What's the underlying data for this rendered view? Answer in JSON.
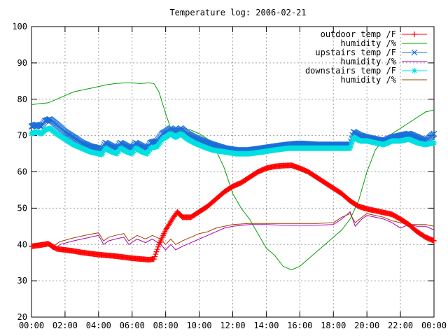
{
  "chart_data": {
    "type": "line",
    "title": "Temperature log: 2006-02-21",
    "xlabel": "",
    "ylabel": "",
    "xlim": [
      0,
      24
    ],
    "ylim": [
      20,
      100
    ],
    "x_unit": "hours",
    "grid": true,
    "legend_position": "top-right",
    "x_ticks": [
      {
        "value": 0,
        "label": "00:00"
      },
      {
        "value": 2,
        "label": "02:00"
      },
      {
        "value": 4,
        "label": "04:00"
      },
      {
        "value": 6,
        "label": "06:00"
      },
      {
        "value": 8,
        "label": "08:00"
      },
      {
        "value": 10,
        "label": "10:00"
      },
      {
        "value": 12,
        "label": "12:00"
      },
      {
        "value": 14,
        "label": "14:00"
      },
      {
        "value": 16,
        "label": "16:00"
      },
      {
        "value": 18,
        "label": "18:00"
      },
      {
        "value": 20,
        "label": "20:00"
      },
      {
        "value": 22,
        "label": "22:00"
      },
      {
        "value": 24,
        "label": "00:00"
      }
    ],
    "y_ticks": [
      {
        "value": 20,
        "label": "20"
      },
      {
        "value": 30,
        "label": "30"
      },
      {
        "value": 40,
        "label": "40"
      },
      {
        "value": 50,
        "label": "50"
      },
      {
        "value": 60,
        "label": "60"
      },
      {
        "value": 70,
        "label": "70"
      },
      {
        "value": 80,
        "label": "80"
      },
      {
        "value": 90,
        "label": "90"
      },
      {
        "value": 100,
        "label": "100"
      }
    ],
    "series": [
      {
        "name": "outdoor temp /F",
        "color": "#ff0000",
        "marker": "plus",
        "points": [
          [
            0,
            39.5
          ],
          [
            0.5,
            39.8
          ],
          [
            1,
            40.2
          ],
          [
            1.5,
            38.8
          ],
          [
            2,
            38.5
          ],
          [
            2.5,
            38.2
          ],
          [
            3,
            37.8
          ],
          [
            3.5,
            37.5
          ],
          [
            4,
            37.2
          ],
          [
            4.5,
            37
          ],
          [
            5,
            36.8
          ],
          [
            5.5,
            36.5
          ],
          [
            6,
            36.2
          ],
          [
            6.5,
            36
          ],
          [
            7,
            35.8
          ],
          [
            7.3,
            36
          ],
          [
            7.6,
            40
          ],
          [
            8,
            44
          ],
          [
            8.4,
            47
          ],
          [
            8.7,
            49
          ],
          [
            9,
            47.5
          ],
          [
            9.5,
            47.5
          ],
          [
            10,
            49
          ],
          [
            10.5,
            50.5
          ],
          [
            11,
            52.5
          ],
          [
            11.5,
            54.5
          ],
          [
            12,
            56
          ],
          [
            12.5,
            57
          ],
          [
            13,
            58.5
          ],
          [
            13.5,
            60
          ],
          [
            14,
            61
          ],
          [
            14.5,
            61.5
          ],
          [
            15,
            61.7
          ],
          [
            15.5,
            61.8
          ],
          [
            16,
            61
          ],
          [
            16.5,
            60
          ],
          [
            17,
            58.5
          ],
          [
            17.5,
            57
          ],
          [
            18,
            55.5
          ],
          [
            18.5,
            54
          ],
          [
            19,
            52
          ],
          [
            19.5,
            50.5
          ],
          [
            20,
            49.8
          ],
          [
            20.5,
            49.3
          ],
          [
            21,
            48.8
          ],
          [
            21.5,
            48.3
          ],
          [
            22,
            47
          ],
          [
            22.5,
            45.5
          ],
          [
            23,
            43.5
          ],
          [
            23.5,
            42
          ],
          [
            24,
            41
          ]
        ]
      },
      {
        "name": "humidity /%",
        "color": "#00a000",
        "marker": "none",
        "points": [
          [
            0,
            78.5
          ],
          [
            0.5,
            78.8
          ],
          [
            1,
            79
          ],
          [
            1.5,
            80
          ],
          [
            2,
            81
          ],
          [
            2.5,
            82
          ],
          [
            3,
            82.5
          ],
          [
            3.5,
            83
          ],
          [
            4,
            83.5
          ],
          [
            4.5,
            84
          ],
          [
            5,
            84.3
          ],
          [
            5.5,
            84.5
          ],
          [
            6,
            84.5
          ],
          [
            6.5,
            84.3
          ],
          [
            7,
            84.5
          ],
          [
            7.3,
            84.3
          ],
          [
            7.6,
            82
          ],
          [
            8,
            76
          ],
          [
            8.3,
            72
          ],
          [
            8.6,
            72
          ],
          [
            9,
            72
          ],
          [
            9.5,
            71.5
          ],
          [
            10,
            70.5
          ],
          [
            10.5,
            69
          ],
          [
            11,
            66
          ],
          [
            11.5,
            61
          ],
          [
            12,
            54
          ],
          [
            12.5,
            50
          ],
          [
            13,
            47
          ],
          [
            13.5,
            43
          ],
          [
            14,
            39
          ],
          [
            14.5,
            37
          ],
          [
            15,
            34
          ],
          [
            15.5,
            33
          ],
          [
            16,
            34
          ],
          [
            16.5,
            36
          ],
          [
            17,
            38
          ],
          [
            17.5,
            40
          ],
          [
            18,
            42
          ],
          [
            18.5,
            44
          ],
          [
            19,
            47
          ],
          [
            19.5,
            52
          ],
          [
            20,
            60
          ],
          [
            20.5,
            66
          ],
          [
            21,
            69
          ],
          [
            21.5,
            70.5
          ],
          [
            22,
            72
          ],
          [
            22.5,
            73.5
          ],
          [
            23,
            75
          ],
          [
            23.5,
            76.5
          ],
          [
            24,
            77
          ]
        ]
      },
      {
        "name": "upstairs temp /F",
        "color": "#1c6fd8",
        "marker": "x",
        "points": [
          [
            0,
            72.5
          ],
          [
            0.3,
            73
          ],
          [
            0.6,
            72.5
          ],
          [
            0.8,
            74
          ],
          [
            1.1,
            74.5
          ],
          [
            1.5,
            73
          ],
          [
            2,
            71
          ],
          [
            2.5,
            69.5
          ],
          [
            3,
            68
          ],
          [
            3.5,
            67
          ],
          [
            4,
            66.5
          ],
          [
            4.2,
            66
          ],
          [
            4.4,
            68
          ],
          [
            4.8,
            67
          ],
          [
            5.1,
            66.5
          ],
          [
            5.3,
            68
          ],
          [
            5.7,
            67
          ],
          [
            6,
            66.5
          ],
          [
            6.2,
            68
          ],
          [
            6.6,
            67
          ],
          [
            6.9,
            66.5
          ],
          [
            7.1,
            68
          ],
          [
            7.5,
            68.5
          ],
          [
            7.8,
            70.5
          ],
          [
            8,
            71
          ],
          [
            8.3,
            72
          ],
          [
            8.6,
            71
          ],
          [
            8.9,
            72
          ],
          [
            9.3,
            70.5
          ],
          [
            9.7,
            69.5
          ],
          [
            10.2,
            68.5
          ],
          [
            10.8,
            67.5
          ],
          [
            11.5,
            66.5
          ],
          [
            12.2,
            66
          ],
          [
            13,
            66
          ],
          [
            13.8,
            66.5
          ],
          [
            14.5,
            67
          ],
          [
            15.3,
            67.5
          ],
          [
            16,
            67.8
          ],
          [
            17,
            67.5
          ],
          [
            18,
            67.5
          ],
          [
            19,
            67.5
          ],
          [
            19.2,
            71
          ],
          [
            19.6,
            70
          ],
          [
            20,
            69.5
          ],
          [
            20.5,
            69
          ],
          [
            21,
            68.5
          ],
          [
            21.5,
            69.5
          ],
          [
            22,
            70
          ],
          [
            22.5,
            70.5
          ],
          [
            23,
            69.5
          ],
          [
            23.5,
            68.5
          ],
          [
            24,
            70.5
          ]
        ]
      },
      {
        "name": "humidity /%",
        "color": "#b000b0",
        "marker": "none",
        "points": [
          [
            0,
            39.5
          ],
          [
            0.5,
            39.8
          ],
          [
            1,
            40
          ],
          [
            1.3,
            38.5
          ],
          [
            1.7,
            40
          ],
          [
            2.5,
            41
          ],
          [
            3,
            41.5
          ],
          [
            3.5,
            42
          ],
          [
            4,
            42.5
          ],
          [
            4.3,
            40
          ],
          [
            4.6,
            41
          ],
          [
            5,
            41.5
          ],
          [
            5.5,
            42
          ],
          [
            5.8,
            40
          ],
          [
            6.3,
            41.5
          ],
          [
            6.8,
            40.5
          ],
          [
            7.2,
            41.5
          ],
          [
            7.7,
            40
          ],
          [
            8,
            38.5
          ],
          [
            8.3,
            40
          ],
          [
            8.6,
            38.5
          ],
          [
            9,
            39.5
          ],
          [
            9.5,
            40.5
          ],
          [
            10,
            41.5
          ],
          [
            10.5,
            42.5
          ],
          [
            11,
            43.5
          ],
          [
            11.5,
            44.5
          ],
          [
            12,
            45
          ],
          [
            13,
            45.5
          ],
          [
            14,
            45.5
          ],
          [
            15,
            45.3
          ],
          [
            16,
            45.3
          ],
          [
            17,
            45.3
          ],
          [
            18,
            45.5
          ],
          [
            18.5,
            47
          ],
          [
            19,
            49
          ],
          [
            19.3,
            45
          ],
          [
            19.7,
            47
          ],
          [
            20,
            48
          ],
          [
            20.5,
            47.5
          ],
          [
            21,
            47
          ],
          [
            21.5,
            46
          ],
          [
            22,
            44.5
          ],
          [
            22.5,
            45.5
          ],
          [
            23,
            45
          ],
          [
            23.5,
            45
          ],
          [
            24,
            44
          ]
        ]
      },
      {
        "name": "downstairs temp /F",
        "color": "#00e0e0",
        "marker": "star",
        "points": [
          [
            0,
            70.5
          ],
          [
            0.3,
            71
          ],
          [
            0.6,
            70.5
          ],
          [
            0.8,
            71.5
          ],
          [
            1.1,
            72
          ],
          [
            1.5,
            70.5
          ],
          [
            2,
            69
          ],
          [
            2.5,
            67.5
          ],
          [
            3,
            66.5
          ],
          [
            3.5,
            65.5
          ],
          [
            4,
            65
          ],
          [
            4.2,
            64.8
          ],
          [
            4.4,
            66.5
          ],
          [
            4.8,
            65.5
          ],
          [
            5.1,
            65
          ],
          [
            5.3,
            66.5
          ],
          [
            5.7,
            65.5
          ],
          [
            6,
            65
          ],
          [
            6.2,
            66.5
          ],
          [
            6.6,
            65.5
          ],
          [
            6.9,
            65
          ],
          [
            7.1,
            66.5
          ],
          [
            7.5,
            67
          ],
          [
            7.8,
            69
          ],
          [
            8,
            69.5
          ],
          [
            8.3,
            70.5
          ],
          [
            8.6,
            69.5
          ],
          [
            8.9,
            70.5
          ],
          [
            9.3,
            69
          ],
          [
            9.7,
            68
          ],
          [
            10.2,
            67
          ],
          [
            10.8,
            66
          ],
          [
            11.5,
            65.5
          ],
          [
            12.2,
            65
          ],
          [
            13,
            65
          ],
          [
            13.8,
            65.5
          ],
          [
            14.5,
            66
          ],
          [
            15.3,
            66.5
          ],
          [
            16,
            66.5
          ],
          [
            17,
            66.5
          ],
          [
            18,
            66.5
          ],
          [
            19,
            66.5
          ],
          [
            19.2,
            69.5
          ],
          [
            19.6,
            68.5
          ],
          [
            20,
            68.5
          ],
          [
            20.5,
            68
          ],
          [
            21,
            67.5
          ],
          [
            21.5,
            68.5
          ],
          [
            22,
            68.5
          ],
          [
            22.5,
            69
          ],
          [
            23,
            68
          ],
          [
            23.5,
            67.5
          ],
          [
            24,
            68
          ]
        ]
      },
      {
        "name": "humidity /%",
        "color": "#a04000",
        "marker": "none",
        "points": [
          [
            0,
            40
          ],
          [
            0.5,
            40.5
          ],
          [
            1,
            40.8
          ],
          [
            1.3,
            39.5
          ],
          [
            1.7,
            40.8
          ],
          [
            2.5,
            41.8
          ],
          [
            3,
            42.3
          ],
          [
            3.5,
            42.8
          ],
          [
            4,
            43.2
          ],
          [
            4.3,
            41
          ],
          [
            4.6,
            42
          ],
          [
            5,
            42.5
          ],
          [
            5.5,
            43
          ],
          [
            5.8,
            41
          ],
          [
            6.3,
            42.5
          ],
          [
            6.8,
            41.5
          ],
          [
            7.2,
            42.5
          ],
          [
            7.7,
            41.5
          ],
          [
            8,
            40
          ],
          [
            8.3,
            41.5
          ],
          [
            8.6,
            40
          ],
          [
            9,
            41
          ],
          [
            9.5,
            42
          ],
          [
            10,
            43
          ],
          [
            10.5,
            43.5
          ],
          [
            11,
            44.5
          ],
          [
            11.5,
            45
          ],
          [
            12,
            45.5
          ],
          [
            13,
            45.8
          ],
          [
            14,
            45.8
          ],
          [
            15,
            45.8
          ],
          [
            16,
            45.8
          ],
          [
            17,
            45.8
          ],
          [
            18,
            46
          ],
          [
            18.5,
            47.5
          ],
          [
            19,
            48.5
          ],
          [
            19.3,
            46
          ],
          [
            19.7,
            47.5
          ],
          [
            20,
            48.5
          ],
          [
            20.5,
            48
          ],
          [
            21,
            47.5
          ],
          [
            21.5,
            46.5
          ],
          [
            22,
            46
          ],
          [
            22.5,
            45.5
          ],
          [
            23,
            45.5
          ],
          [
            23.5,
            45.5
          ],
          [
            24,
            45
          ]
        ]
      }
    ]
  }
}
